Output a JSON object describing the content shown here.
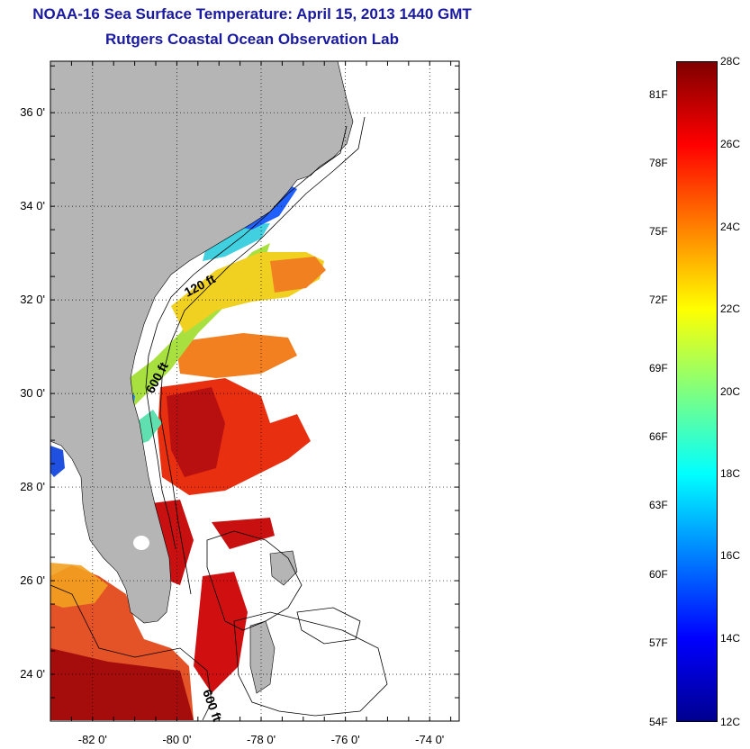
{
  "title": {
    "line1": "NOAA-16 Sea Surface Temperature:  April 15, 2013 1440 GMT",
    "line2": "Rutgers Coastal Ocean Observation Lab"
  },
  "map": {
    "lon_ticks": [
      "-82 0'",
      "-80 0'",
      "-78 0'",
      "-76 0'",
      "-74 0'"
    ],
    "lon_values": [
      -82,
      -80,
      -78,
      -76,
      -74
    ],
    "lat_ticks": [
      "24 0'",
      "26 0'",
      "28 0'",
      "30 0'",
      "32 0'",
      "34 0'",
      "36 0'"
    ],
    "lat_values": [
      24,
      26,
      28,
      30,
      32,
      34,
      36
    ],
    "lon_range": [
      -83.0,
      -73.3
    ],
    "lat_range": [
      23.0,
      37.1
    ],
    "contour_labels": [
      "120 ft",
      "600 ft",
      "600 ft"
    ],
    "land_color": "#b5b5b5",
    "grid": true
  },
  "colorbar": {
    "celsius_labels": [
      "28C",
      "26C",
      "24C",
      "22C",
      "20C",
      "18C",
      "16C",
      "14C",
      "12C"
    ],
    "celsius_values": [
      28,
      26,
      24,
      22,
      20,
      18,
      16,
      14,
      12
    ],
    "fahrenheit_labels": [
      "81F",
      "78F",
      "75F",
      "72F",
      "69F",
      "66F",
      "63F",
      "60F",
      "57F",
      "54F"
    ],
    "fahrenheit_values": [
      81,
      78,
      75,
      72,
      69,
      66,
      63,
      60,
      57,
      54
    ],
    "range_c": [
      12,
      28
    ],
    "colors": [
      "#00008f",
      "#0000ff",
      "#007fff",
      "#00ffff",
      "#7fff7f",
      "#ffff00",
      "#ff7f00",
      "#ff0000",
      "#7f0000"
    ]
  }
}
